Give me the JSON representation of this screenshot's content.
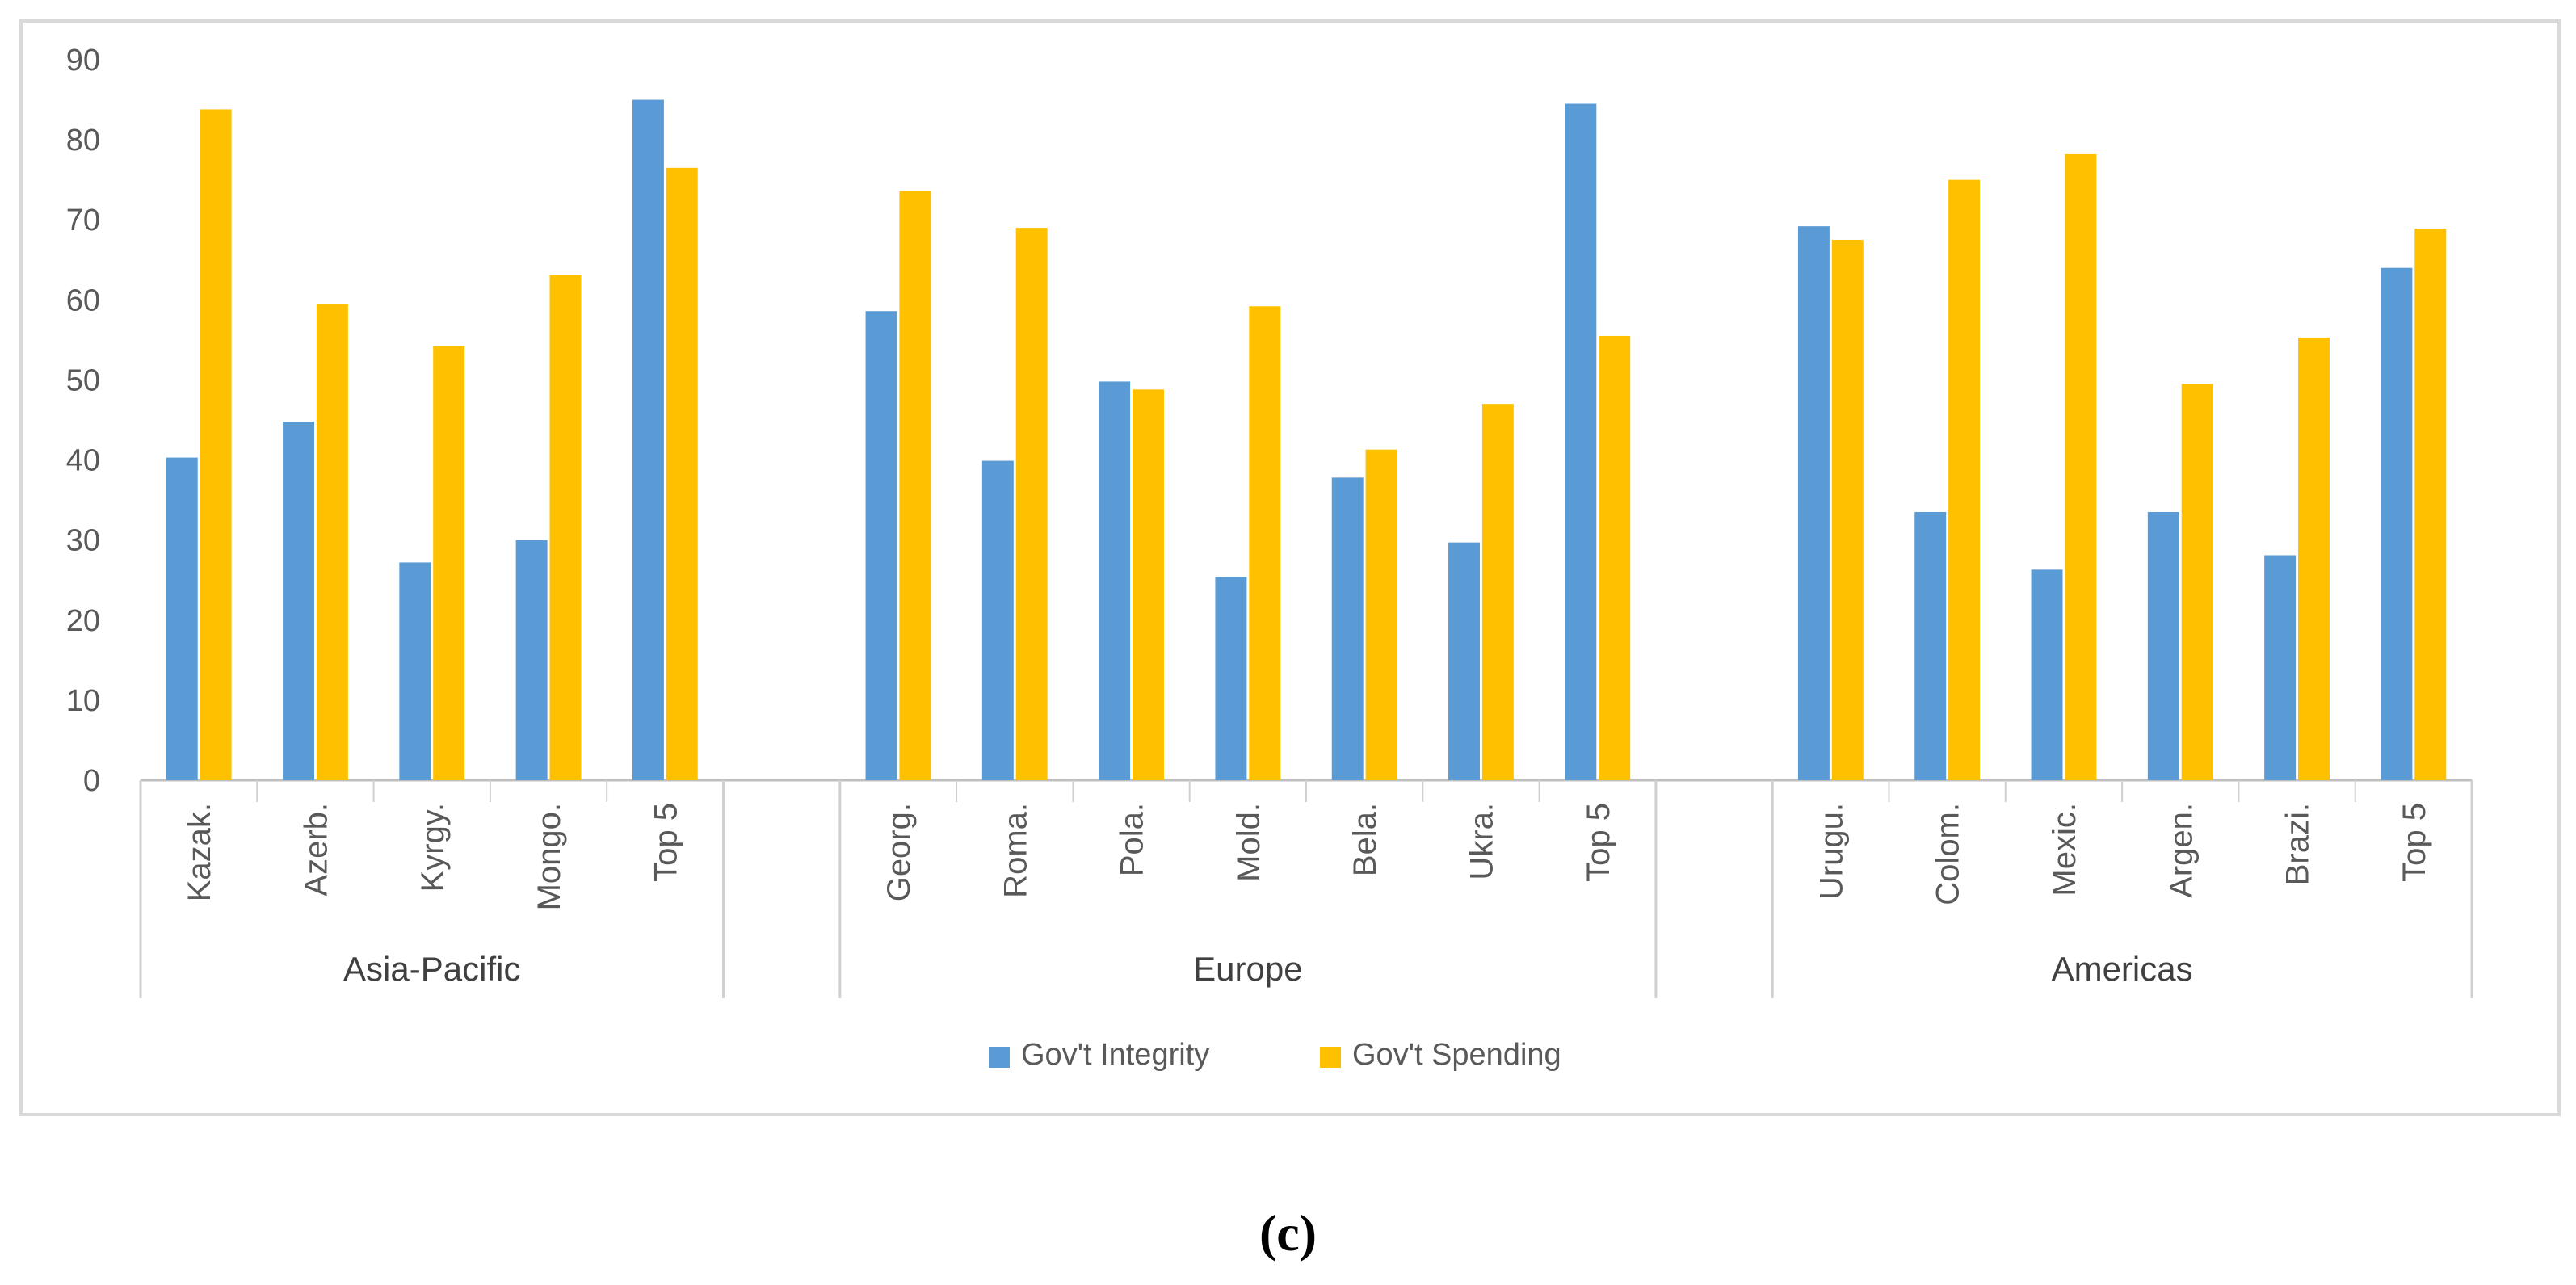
{
  "chart_data": {
    "type": "bar",
    "ylim": [
      0,
      90
    ],
    "yticks": [
      0,
      10,
      20,
      30,
      40,
      50,
      60,
      70,
      80,
      90
    ],
    "grid": false,
    "legend_position": "bottom",
    "groups": [
      {
        "name": "Asia-Pacific",
        "categories": [
          "Kazak.",
          "Azerb.",
          "Kyrgy.",
          "Mongo.",
          "Top 5"
        ]
      },
      {
        "name": "Europe",
        "categories": [
          "Georg.",
          "Roma.",
          "Pola.",
          "Mold.",
          "Bela.",
          "Ukra.",
          "Top 5"
        ]
      },
      {
        "name": "Americas",
        "categories": [
          "Urugu.",
          "Colom.",
          "Mexic.",
          "Argen.",
          "Brazi.",
          "Top 5"
        ]
      }
    ],
    "series": [
      {
        "name": "Gov't Integrity",
        "color": "#5b9bd5",
        "values": [
          40.3,
          44.8,
          27.2,
          30.0,
          85.0,
          58.6,
          39.9,
          49.8,
          25.4,
          37.8,
          29.7,
          84.5,
          69.2,
          33.5,
          26.3,
          33.5,
          28.1,
          64.0
        ]
      },
      {
        "name": "Gov't Spending",
        "color": "#ffc000",
        "values": [
          83.8,
          59.5,
          54.2,
          63.1,
          76.5,
          73.6,
          69.0,
          48.8,
          59.2,
          41.3,
          47.0,
          55.5,
          67.5,
          75.0,
          78.2,
          49.5,
          55.3,
          68.9
        ]
      }
    ]
  },
  "panel_label": "(c)"
}
